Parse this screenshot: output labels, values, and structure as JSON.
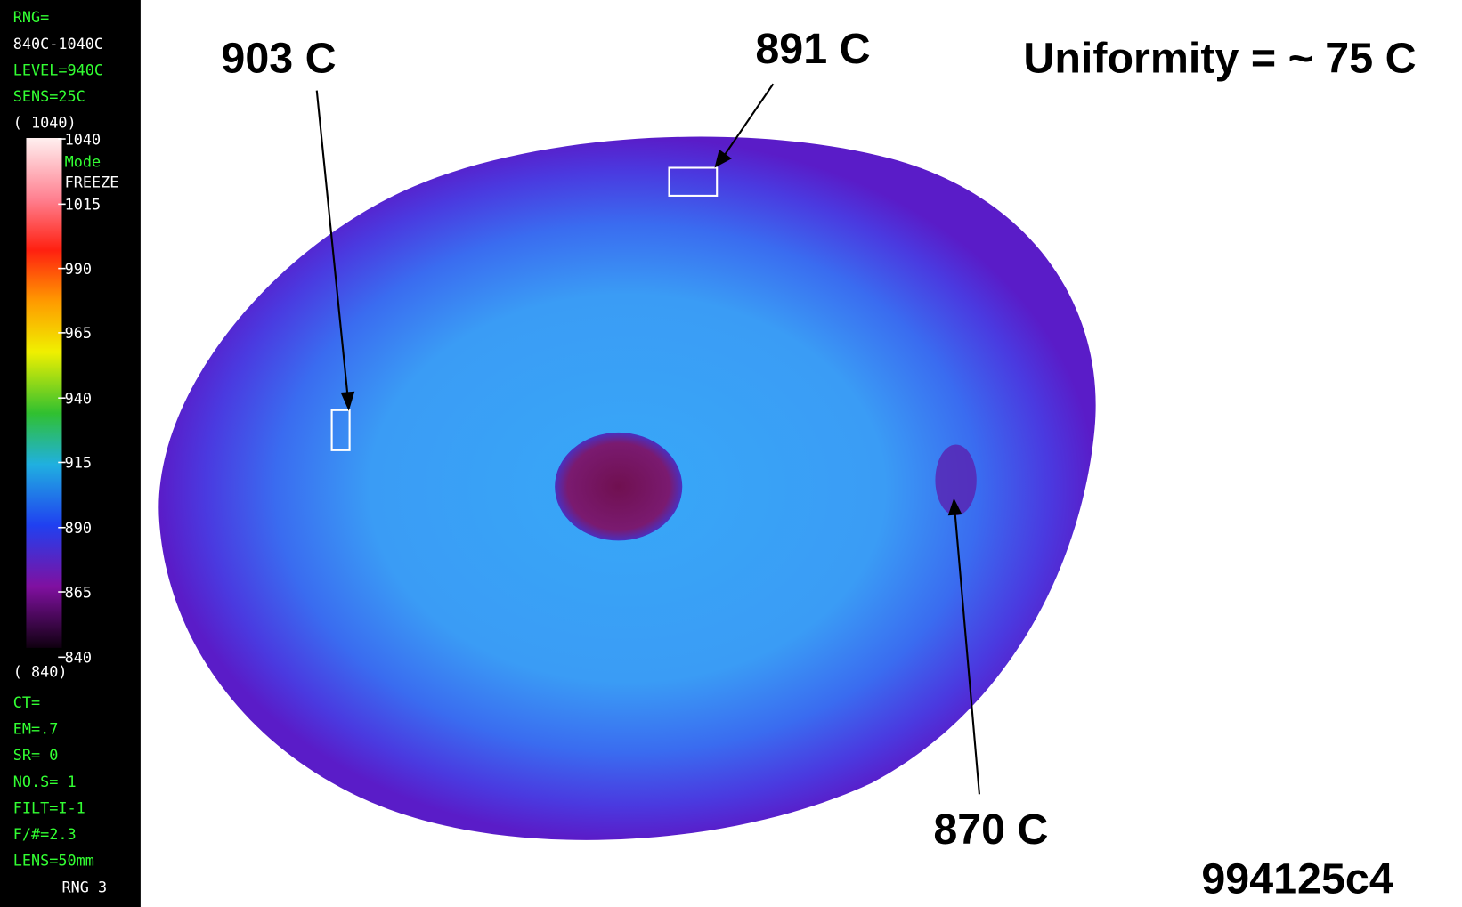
{
  "sidebar": {
    "lines_top": [
      "RNG=",
      "840C-1040C",
      "LEVEL=940C",
      "SENS=25C",
      "( 1040)"
    ],
    "scale_labels": [
      "1040",
      "Mode",
      "FREEZE",
      "1015",
      "990",
      "965",
      "940",
      "915",
      "890",
      "865",
      "840"
    ],
    "scale_min": "( 840)",
    "lines_bottom": [
      "CT=",
      "EM=.7",
      "SR= 0",
      "NO.S= 1",
      "FILT=I-1",
      "F/#=2.3",
      "LENS=50mm",
      "RNG 3"
    ]
  },
  "annotations": {
    "left": "903 C",
    "top": "891 C",
    "right": "870 C"
  },
  "title": "Uniformity = ~ 75 C",
  "image_id": "994125c4"
}
